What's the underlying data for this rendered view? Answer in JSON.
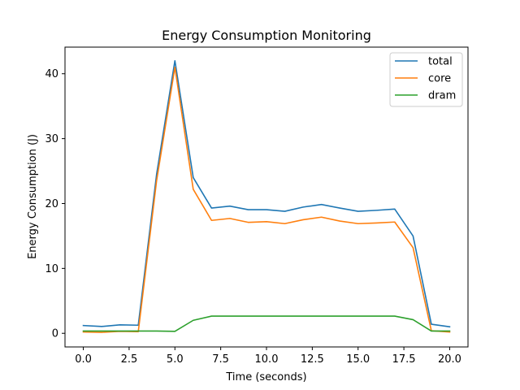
{
  "chart_data": {
    "type": "line",
    "title": "Energy Consumption Monitoring",
    "xlabel": "Time (seconds)",
    "ylabel": "Energy Consumption (J)",
    "xlim": [
      -1.0,
      21.0
    ],
    "ylim": [
      -2.1,
      44.1
    ],
    "xticks": [
      0.0,
      2.5,
      5.0,
      7.5,
      10.0,
      12.5,
      15.0,
      17.5,
      20.0
    ],
    "xtick_labels": [
      "0.0",
      "2.5",
      "5.0",
      "7.5",
      "10.0",
      "12.5",
      "15.0",
      "17.5",
      "20.0"
    ],
    "yticks": [
      0,
      10,
      20,
      30,
      40
    ],
    "ytick_labels": [
      "0",
      "10",
      "20",
      "30",
      "40"
    ],
    "grid": false,
    "legend_position": "top-right",
    "x": [
      0,
      1,
      2,
      3,
      4,
      5,
      6,
      7,
      8,
      9,
      10,
      11,
      12,
      13,
      14,
      15,
      16,
      17,
      18,
      19,
      20
    ],
    "series": [
      {
        "name": "total",
        "color": "#1f77b4",
        "values": [
          1.2,
          1.05,
          1.3,
          1.25,
          24.5,
          42.0,
          24.0,
          19.3,
          19.6,
          19.05,
          19.05,
          18.8,
          19.45,
          19.85,
          19.3,
          18.8,
          18.95,
          19.15,
          15.0,
          1.4,
          1.0
        ]
      },
      {
        "name": "core",
        "color": "#ff7f0e",
        "values": [
          0.2,
          0.15,
          0.3,
          0.25,
          23.5,
          41.0,
          22.2,
          17.4,
          17.7,
          17.1,
          17.2,
          16.9,
          17.5,
          17.9,
          17.3,
          16.9,
          17.0,
          17.15,
          13.2,
          0.4,
          0.2
        ]
      },
      {
        "name": "dram",
        "color": "#2ca02c",
        "values": [
          0.35,
          0.35,
          0.35,
          0.35,
          0.35,
          0.3,
          2.0,
          2.65,
          2.65,
          2.65,
          2.65,
          2.65,
          2.65,
          2.65,
          2.65,
          2.65,
          2.65,
          2.65,
          2.1,
          0.35,
          0.35
        ]
      }
    ]
  }
}
